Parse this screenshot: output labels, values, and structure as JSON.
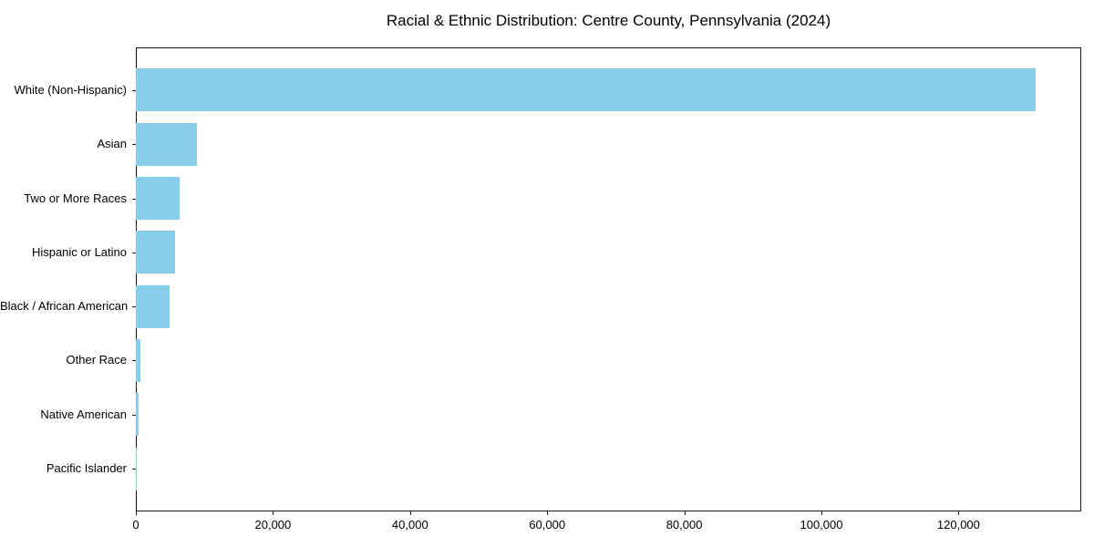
{
  "chart_data": {
    "type": "bar",
    "orientation": "horizontal",
    "title": "Racial & Ethnic Distribution: Centre County, Pennsylvania (2024)",
    "categories": [
      "White (Non-Hispanic)",
      "Asian",
      "Two or More Races",
      "Hispanic or Latino",
      "Black / African American",
      "Other Race",
      "Native American",
      "Pacific Islander"
    ],
    "values": [
      131300,
      8900,
      6400,
      5700,
      4900,
      700,
      400,
      50
    ],
    "xlabel": "",
    "ylabel": "",
    "xlim": [
      0,
      137900
    ],
    "xticks": [
      0,
      20000,
      40000,
      60000,
      80000,
      100000,
      120000
    ],
    "xtick_labels": [
      "0",
      "20,000",
      "40,000",
      "60,000",
      "80,000",
      "100,000",
      "120,000"
    ],
    "bar_color": "#87CEEB",
    "grid": false,
    "legend_position": "none"
  },
  "colors": {
    "background": "#ffffff",
    "axis": "#1a1a1a",
    "text": "#000000"
  }
}
